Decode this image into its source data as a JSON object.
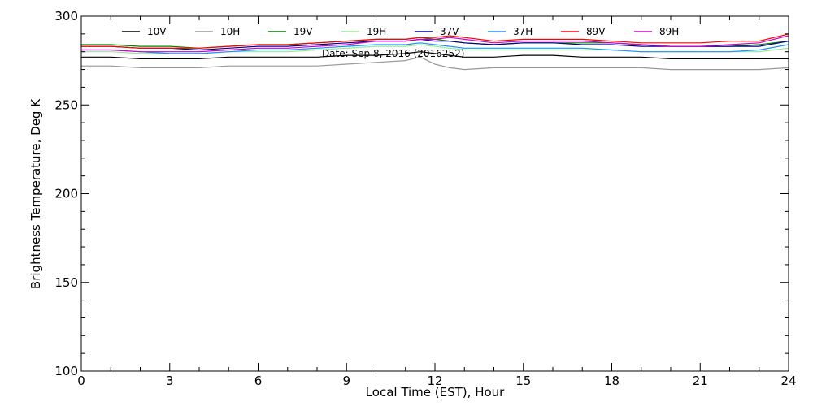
{
  "chart_data": {
    "type": "line",
    "xlabel": "Local Time (EST), Hour",
    "ylabel": "Brightness Temperature, Deg K",
    "annotation": "Date: Sep  8, 2016 (2016252)",
    "xlim": [
      0,
      24
    ],
    "ylim": [
      100,
      300
    ],
    "xticks": [
      0,
      3,
      6,
      9,
      12,
      15,
      18,
      21,
      24
    ],
    "xtick_labels": [
      "0",
      "3",
      "6",
      "9",
      "12",
      "15",
      "18",
      "21",
      "24"
    ],
    "yticks": [
      100,
      150,
      200,
      250,
      300
    ],
    "ytick_labels": [
      "100",
      "150",
      "200",
      "250",
      "300"
    ],
    "grid": false,
    "legend_position": "top",
    "x": [
      0,
      1,
      2,
      3,
      4,
      5,
      6,
      7,
      8,
      9,
      10,
      11,
      11.5,
      12,
      12.5,
      13,
      14,
      15,
      16,
      17,
      18,
      19,
      20,
      21,
      22,
      23,
      24
    ],
    "series": [
      {
        "name": "10V",
        "color": "#000000",
        "values": [
          277,
          277,
          276,
          276,
          276,
          277,
          277,
          277,
          277,
          278,
          278,
          279,
          280,
          279,
          278,
          277,
          277,
          278,
          278,
          277,
          277,
          277,
          276,
          276,
          276,
          276,
          276
        ]
      },
      {
        "name": "10H",
        "color": "#999999",
        "values": [
          272,
          272,
          271,
          271,
          271,
          272,
          272,
          272,
          272,
          273,
          274,
          275,
          277,
          273,
          271,
          270,
          271,
          271,
          271,
          271,
          271,
          271,
          270,
          270,
          270,
          270,
          271
        ]
      },
      {
        "name": "19V",
        "color": "#008000",
        "values": [
          284,
          284,
          283,
          283,
          282,
          283,
          284,
          284,
          285,
          286,
          287,
          287,
          288,
          287,
          286,
          285,
          284,
          285,
          285,
          285,
          285,
          284,
          283,
          283,
          283,
          284,
          286
        ]
      },
      {
        "name": "19H",
        "color": "#90ee90",
        "values": [
          280,
          280,
          279,
          279,
          279,
          280,
          280,
          280,
          281,
          282,
          283,
          283,
          284,
          283,
          282,
          281,
          281,
          281,
          281,
          281,
          281,
          280,
          280,
          280,
          280,
          280,
          282
        ]
      },
      {
        "name": "37V",
        "color": "#00008b",
        "values": [
          283,
          283,
          282,
          282,
          281,
          282,
          283,
          283,
          284,
          285,
          286,
          286,
          287,
          286,
          286,
          285,
          284,
          285,
          285,
          284,
          284,
          283,
          283,
          283,
          283,
          283,
          286
        ]
      },
      {
        "name": "37H",
        "color": "#1e90ff",
        "values": [
          281,
          281,
          280,
          279,
          279,
          280,
          281,
          281,
          282,
          283,
          284,
          284,
          285,
          284,
          283,
          282,
          282,
          282,
          282,
          282,
          281,
          280,
          280,
          280,
          280,
          281,
          284
        ]
      },
      {
        "name": "89V",
        "color": "#ff0000",
        "values": [
          283,
          283,
          282,
          282,
          282,
          283,
          284,
          284,
          285,
          286,
          287,
          287,
          288,
          288,
          289,
          288,
          286,
          287,
          287,
          287,
          286,
          285,
          285,
          285,
          286,
          286,
          290
        ]
      },
      {
        "name": "89H",
        "color": "#cc00cc",
        "values": [
          281,
          281,
          280,
          280,
          280,
          281,
          282,
          282,
          283,
          284,
          286,
          286,
          287,
          287,
          288,
          287,
          285,
          286,
          286,
          286,
          285,
          284,
          283,
          283,
          284,
          285,
          289
        ]
      }
    ]
  }
}
